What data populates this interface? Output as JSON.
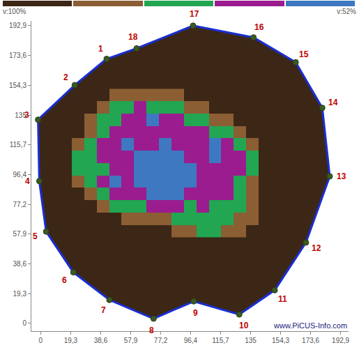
{
  "chart_data": {
    "type": "tomogram",
    "xlim": [
      -6,
      198
    ],
    "ylim": [
      -5,
      196
    ],
    "xticks": [
      0,
      {
        "value": 19.3,
        "label": "19,3"
      },
      {
        "value": 38.6,
        "label": "38,6"
      },
      {
        "value": 57.9,
        "label": "57,9"
      },
      {
        "value": 77.2,
        "label": "77,2"
      },
      {
        "value": 96.4,
        "label": "96,4"
      },
      {
        "value": 115.7,
        "label": "115,7"
      },
      135,
      {
        "value": 154.3,
        "label": "154,3"
      },
      {
        "value": 173.6,
        "label": "173,6"
      },
      {
        "value": 192.9,
        "label": "192,9"
      }
    ],
    "yticks": [
      0,
      {
        "value": 19.3,
        "label": "19,3"
      },
      {
        "value": 38.6,
        "label": "38,6"
      },
      {
        "value": 57.9,
        "label": "57,9"
      },
      {
        "value": 77.2,
        "label": "77,2"
      },
      {
        "value": 96.4,
        "label": "96,4"
      },
      {
        "value": 115.7,
        "label": "115,7"
      },
      135,
      {
        "value": 154.3,
        "label": "154,3"
      },
      {
        "value": 173.6,
        "label": "173,6"
      },
      {
        "value": 192.9,
        "label": "192,9"
      }
    ],
    "grid": false,
    "sensors": {
      "color": "#1a2fd0",
      "labels": [
        "1",
        "2",
        "3",
        "4",
        "5",
        "6",
        "7",
        "8",
        "9",
        "10",
        "11",
        "12",
        "13",
        "14",
        "15",
        "16",
        "17",
        "18"
      ],
      "x": [
        42.4,
        21.9,
        -1.7,
        -0.9,
        3.5,
        21.0,
        44.2,
        72.6,
        98.4,
        127.7,
        150.5,
        170.6,
        185.9,
        181.1,
        164.0,
        136.9,
        98.0,
        61.7
      ],
      "y": [
        171.4,
        154.4,
        132.0,
        92.2,
        59.5,
        33.1,
        15.2,
        3.1,
        14.3,
        5.8,
        21.5,
        52.4,
        95.3,
        139.7,
        169.2,
        185.3,
        192.9,
        178.2
      ]
    },
    "cells": {
      "x": [
        24,
        32,
        40,
        48,
        56,
        64,
        72,
        80,
        88,
        96,
        104,
        112,
        120,
        128,
        136
      ],
      "y": [
        60,
        68,
        76,
        84,
        92,
        100,
        108,
        116,
        124,
        132,
        140,
        148
      ],
      "z": [
        [
          null,
          null,
          null,
          null,
          null,
          null,
          null,
          null,
          2,
          2,
          3,
          3,
          2,
          2,
          null
        ],
        [
          null,
          null,
          null,
          null,
          2,
          2,
          2,
          2,
          3,
          3,
          3,
          3,
          3,
          2,
          2
        ],
        [
          null,
          null,
          2,
          3,
          3,
          3,
          4,
          4,
          4,
          3,
          4,
          3,
          3,
          3,
          2
        ],
        [
          null,
          2,
          3,
          4,
          4,
          4,
          5,
          5,
          5,
          4,
          4,
          4,
          4,
          3,
          2
        ],
        [
          2,
          3,
          4,
          5,
          4,
          5,
          5,
          5,
          5,
          5,
          4,
          4,
          4,
          3,
          2
        ],
        [
          3,
          3,
          3,
          4,
          4,
          5,
          5,
          5,
          5,
          5,
          4,
          4,
          4,
          4,
          3
        ],
        [
          3,
          3,
          4,
          4,
          4,
          5,
          5,
          5,
          5,
          4,
          4,
          5,
          4,
          4,
          3
        ],
        [
          2,
          3,
          4,
          4,
          5,
          4,
          4,
          5,
          4,
          4,
          4,
          5,
          4,
          3,
          2
        ],
        [
          null,
          2,
          3,
          4,
          4,
          4,
          4,
          4,
          4,
          4,
          4,
          3,
          3,
          2,
          null
        ],
        [
          null,
          2,
          3,
          3,
          4,
          4,
          5,
          4,
          4,
          3,
          3,
          2,
          2,
          null,
          null
        ],
        [
          null,
          null,
          2,
          3,
          3,
          4,
          3,
          3,
          3,
          2,
          2,
          null,
          null,
          null,
          null
        ],
        [
          null,
          null,
          null,
          2,
          2,
          2,
          2,
          2,
          2,
          null,
          null,
          null,
          null,
          null,
          null
        ]
      ]
    },
    "color_bar": {
      "range": [
        1,
        5
      ],
      "colors": [
        "#3c2616",
        "#8b5e34",
        "#22a652",
        "#9b1c8f",
        "#3d78c0"
      ],
      "labels": [
        "v:100%",
        "v:52%"
      ]
    },
    "annotations": [
      "www.PiCUS-Info.com"
    ]
  }
}
